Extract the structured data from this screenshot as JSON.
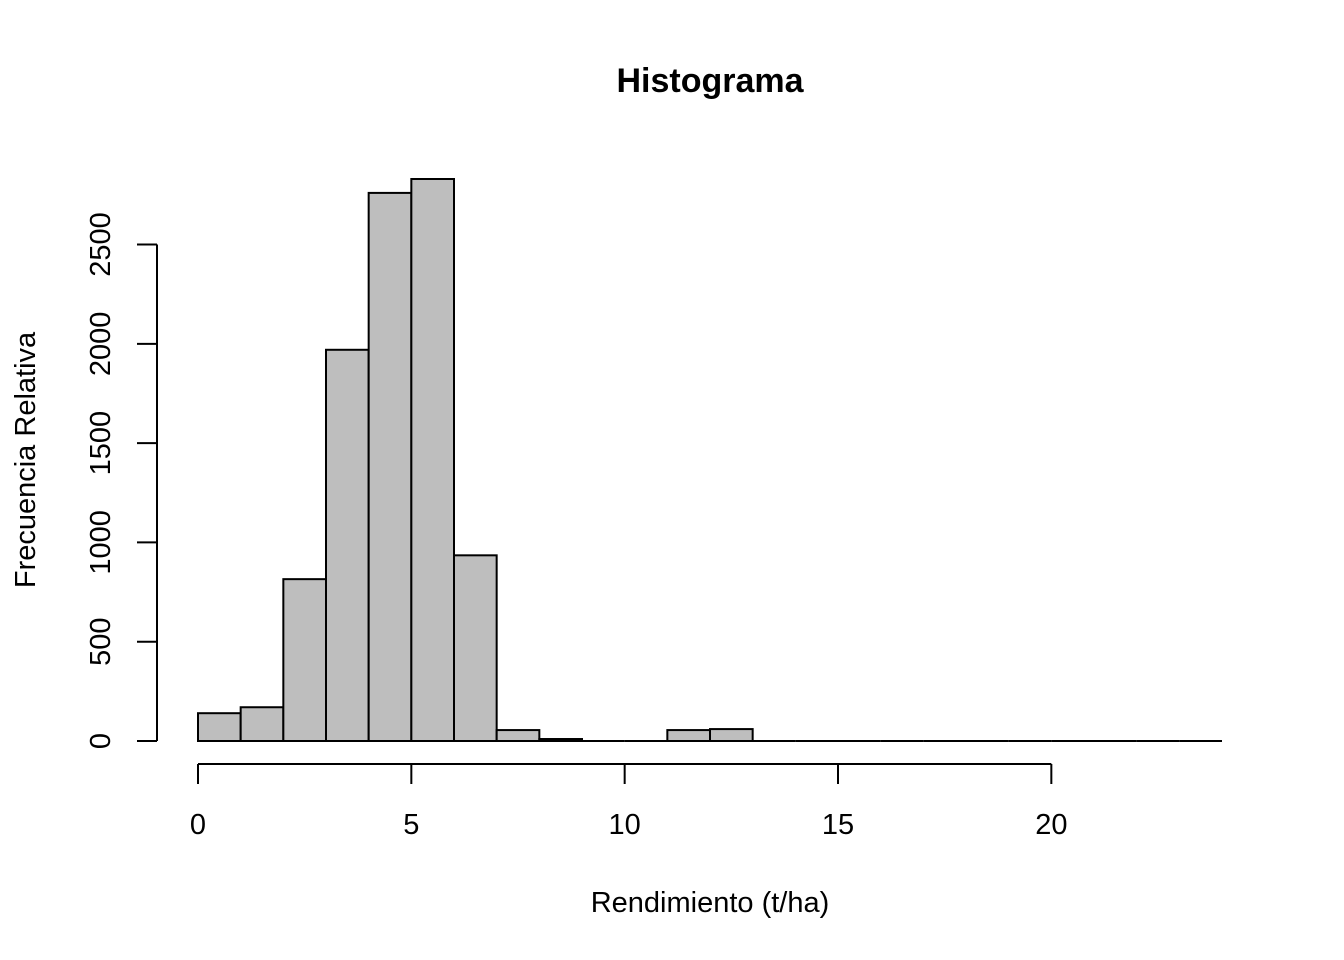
{
  "chart_data": {
    "type": "bar",
    "title": "Histograma",
    "xlabel": "Rendimiento (t/ha)",
    "ylabel": "Frecuencia Relativa",
    "bin_edges": [
      0,
      1,
      2,
      3,
      4,
      5,
      6,
      7,
      8,
      9,
      10,
      11,
      12,
      13,
      14,
      15,
      16,
      17,
      18,
      19,
      20,
      21,
      22,
      23,
      24
    ],
    "values": [
      140,
      170,
      815,
      1970,
      2760,
      2830,
      935,
      55,
      10,
      0,
      0,
      55,
      60,
      0,
      0,
      0,
      0,
      0,
      0,
      0,
      0,
      0,
      0,
      0
    ],
    "xlim": [
      0,
      24
    ],
    "ylim": [
      0,
      2830
    ],
    "xticks": [
      0,
      5,
      10,
      15,
      20
    ],
    "yticks": [
      0,
      500,
      1000,
      1500,
      2000,
      2500
    ],
    "grid": false,
    "colors": {
      "bar_fill": "#bebebe",
      "bar_stroke": "#000000"
    }
  }
}
